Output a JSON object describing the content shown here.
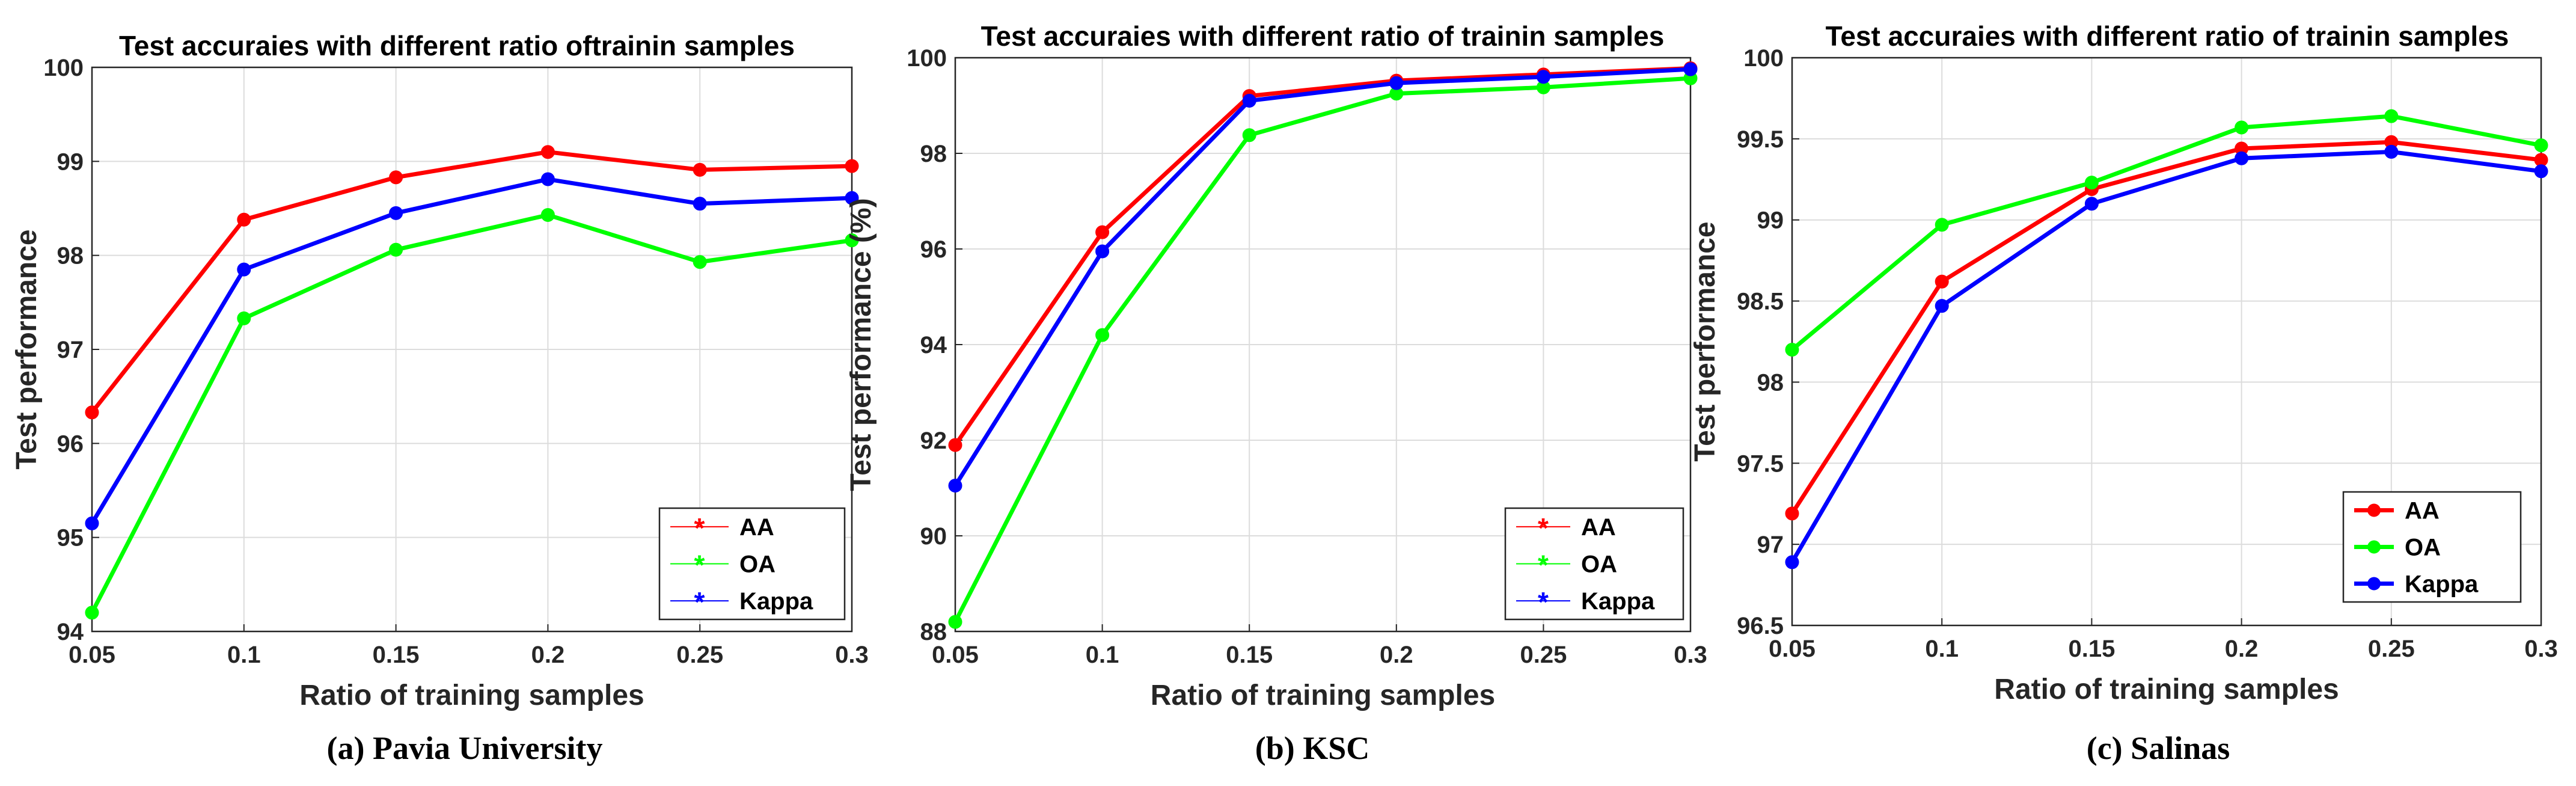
{
  "chart_data": [
    {
      "type": "line",
      "title": "Test accuraies with different ratio oftrainin samples",
      "caption": "(a) Pavia University",
      "xlabel": "Ratio of training samples",
      "ylabel": "Test performance",
      "x": [
        0.05,
        0.1,
        0.15,
        0.2,
        0.25,
        0.3
      ],
      "x_tick_labels": [
        "0.05",
        "0.1",
        "0.15",
        "0.2",
        "0.25",
        "0.3"
      ],
      "xlim": [
        0.05,
        0.3
      ],
      "ylim": [
        94,
        100
      ],
      "y_ticks": [
        94,
        95,
        96,
        97,
        98,
        99,
        100
      ],
      "y_tick_labels": [
        "94",
        "95",
        "96",
        "97",
        "98",
        "99",
        "100"
      ],
      "grid": true,
      "legend_position": "bottom-right",
      "legend_marker": "asterisk",
      "series": [
        {
          "name": "AA",
          "color": "#ff0000",
          "values": [
            96.33,
            98.38,
            98.83,
            99.1,
            98.91,
            98.95
          ]
        },
        {
          "name": "OA",
          "color": "#00ff00",
          "values": [
            94.2,
            97.33,
            98.06,
            98.43,
            97.93,
            98.16
          ]
        },
        {
          "name": "Kappa",
          "color": "#0000ff",
          "values": [
            95.15,
            97.85,
            98.45,
            98.81,
            98.55,
            98.61
          ]
        }
      ]
    },
    {
      "type": "line",
      "title": "Test accuraies with different ratio of trainin samples",
      "caption": "(b) KSC",
      "xlabel": "Ratio of training samples",
      "ylabel": "Test performance (%)",
      "x": [
        0.05,
        0.1,
        0.15,
        0.2,
        0.25,
        0.3
      ],
      "x_tick_labels": [
        "0.05",
        "0.1",
        "0.15",
        "0.2",
        "0.25",
        "0.3"
      ],
      "xlim": [
        0.05,
        0.3
      ],
      "ylim": [
        88,
        100
      ],
      "y_ticks": [
        88,
        90,
        92,
        94,
        96,
        98,
        100
      ],
      "y_tick_labels": [
        "88",
        "90",
        "92",
        "94",
        "96",
        "98",
        "100"
      ],
      "grid": true,
      "legend_position": "bottom-right",
      "legend_marker": "asterisk",
      "series": [
        {
          "name": "AA",
          "color": "#ff0000",
          "values": [
            91.9,
            96.35,
            99.2,
            99.52,
            99.65,
            99.78
          ]
        },
        {
          "name": "OA",
          "color": "#00ff00",
          "values": [
            88.2,
            94.2,
            98.38,
            99.25,
            99.38,
            99.57
          ]
        },
        {
          "name": "Kappa",
          "color": "#0000ff",
          "values": [
            91.05,
            95.95,
            99.1,
            99.47,
            99.6,
            99.76
          ]
        }
      ]
    },
    {
      "type": "line",
      "title": "Test accuraies with different ratio of trainin samples",
      "caption": "(c) Salinas",
      "xlabel": "Ratio of training samples",
      "ylabel": "Test performance",
      "x": [
        0.05,
        0.1,
        0.15,
        0.2,
        0.25,
        0.3
      ],
      "x_tick_labels": [
        "0.05",
        "0.1",
        "0.15",
        "0.2",
        "0.25",
        "0.3"
      ],
      "xlim": [
        0.05,
        0.3
      ],
      "ylim": [
        96.5,
        100
      ],
      "y_ticks": [
        96.5,
        97,
        97.5,
        98,
        98.5,
        99,
        99.5,
        100
      ],
      "y_tick_labels": [
        "96.5",
        "97",
        "97.5",
        "98",
        "98.5",
        "99",
        "99.5",
        "100"
      ],
      "grid": true,
      "legend_position": "bottom-right",
      "legend_marker": "circle",
      "series": [
        {
          "name": "AA",
          "color": "#ff0000",
          "values": [
            97.19,
            98.62,
            99.19,
            99.44,
            99.48,
            99.37
          ]
        },
        {
          "name": "OA",
          "color": "#00ff00",
          "values": [
            98.2,
            98.97,
            99.23,
            99.57,
            99.64,
            99.46
          ]
        },
        {
          "name": "Kappa",
          "color": "#0000ff",
          "values": [
            96.89,
            98.47,
            99.1,
            99.38,
            99.42,
            99.3
          ]
        }
      ]
    }
  ]
}
